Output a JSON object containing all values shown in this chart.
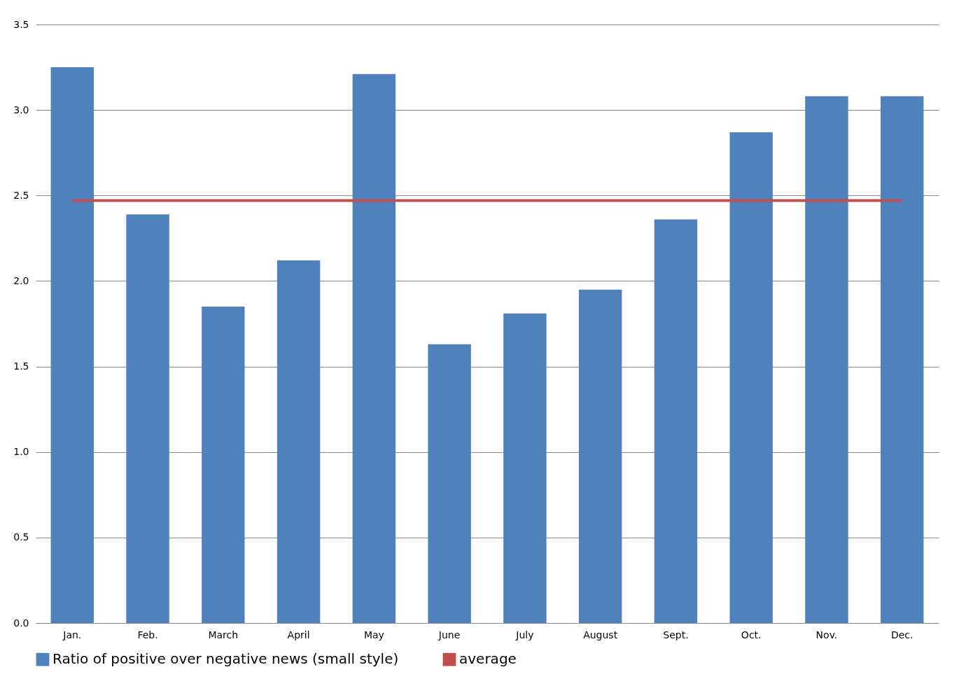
{
  "chart_data": {
    "type": "bar",
    "categories": [
      "Jan.",
      "Feb.",
      "March",
      "April",
      "May",
      "June",
      "July",
      "August",
      "Sept.",
      "Oct.",
      "Nov.",
      "Dec."
    ],
    "series": [
      {
        "name": "Ratio of positive over negative news (small style)",
        "color": "#4f81bd",
        "values": [
          3.25,
          2.39,
          1.85,
          2.12,
          3.21,
          1.63,
          1.81,
          1.95,
          2.36,
          2.87,
          3.08,
          3.08
        ]
      },
      {
        "name": "average",
        "type": "line",
        "color": "#c0504d",
        "values": [
          2.47,
          2.47,
          2.47,
          2.47,
          2.47,
          2.47,
          2.47,
          2.47,
          2.47,
          2.47,
          2.47,
          2.47
        ]
      }
    ],
    "ylim": [
      0,
      3.5
    ],
    "yticks": [
      {
        "value": 0,
        "label": "0.0"
      },
      {
        "value": 0.5,
        "label": "0.5"
      },
      {
        "value": 1,
        "label": "1.0"
      },
      {
        "value": 1.5,
        "label": "1.5"
      },
      {
        "value": 2,
        "label": "2.0"
      },
      {
        "value": 2.5,
        "label": "2.5"
      },
      {
        "value": 3,
        "label": "3.0"
      },
      {
        "value": 3.5,
        "label": "3.5"
      }
    ],
    "grid": "y",
    "legend": "bottom"
  }
}
